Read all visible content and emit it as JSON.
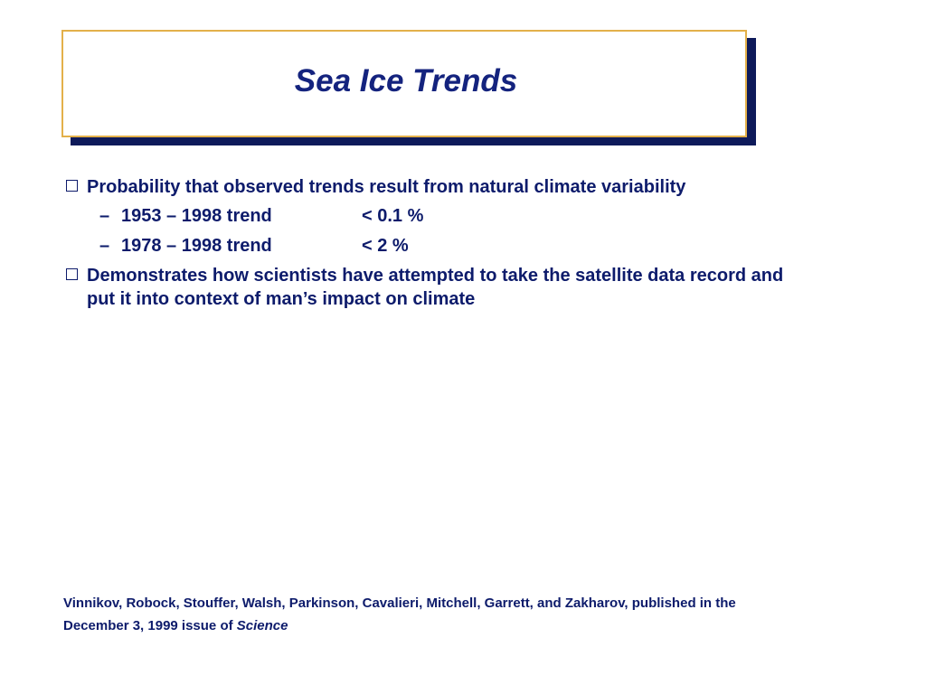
{
  "slide": {
    "title": "Sea Ice Trends",
    "bullets": [
      {
        "text": "Probability that observed trends result from natural climate variability",
        "subitems": [
          {
            "dash": "–",
            "label": "1953 – 1998 trend",
            "value": "< 0.1 %"
          },
          {
            "dash": "–",
            "label": "1978 – 1998 trend",
            "value": "< 2 %"
          }
        ]
      },
      {
        "text": "Demonstrates how scientists have attempted to take the satellite data record and put it into context of man’s impact on climate"
      }
    ],
    "citation": {
      "line1": "Vinnikov, Robock, Stouffer, Walsh, Parkinson, Cavalieri, Mitchell, Garrett, and Zakharov, published in the",
      "line2_prefix": "December 3, 1999 issue of ",
      "journal": "Science"
    },
    "colors": {
      "text": "#0d1b6b",
      "title": "#14237e",
      "title_border": "#e3b04a",
      "shadow": "#0e1a5a"
    }
  }
}
